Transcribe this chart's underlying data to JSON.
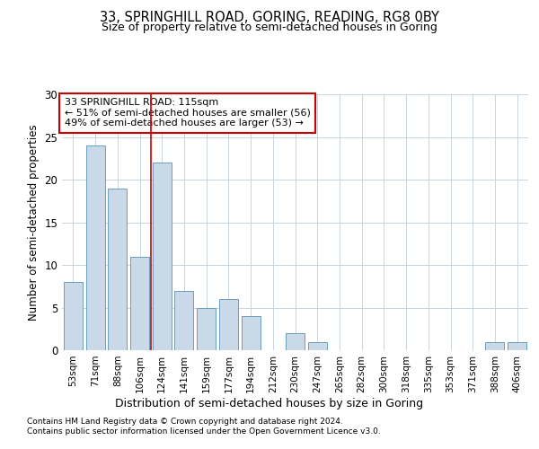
{
  "title1": "33, SPRINGHILL ROAD, GORING, READING, RG8 0BY",
  "title2": "Size of property relative to semi-detached houses in Goring",
  "xlabel": "Distribution of semi-detached houses by size in Goring",
  "ylabel": "Number of semi-detached properties",
  "categories": [
    "53sqm",
    "71sqm",
    "88sqm",
    "106sqm",
    "124sqm",
    "141sqm",
    "159sqm",
    "177sqm",
    "194sqm",
    "212sqm",
    "230sqm",
    "247sqm",
    "265sqm",
    "282sqm",
    "300sqm",
    "318sqm",
    "335sqm",
    "353sqm",
    "371sqm",
    "388sqm",
    "406sqm"
  ],
  "values": [
    8,
    24,
    19,
    11,
    22,
    7,
    5,
    6,
    4,
    0,
    2,
    1,
    0,
    0,
    0,
    0,
    0,
    0,
    0,
    1,
    1
  ],
  "bar_color": "#c9d9e8",
  "bar_edge_color": "#6a9fc0",
  "annotation_title": "33 SPRINGHILL ROAD: 115sqm",
  "annotation_line1": "← 51% of semi-detached houses are smaller (56)",
  "annotation_line2": "49% of semi-detached houses are larger (53) →",
  "annotation_box_color": "#ffffff",
  "annotation_box_edge": "#cc0000",
  "vline_color": "#cc0000",
  "vline_x_index": 3.5,
  "ylim": [
    0,
    30
  ],
  "yticks": [
    0,
    5,
    10,
    15,
    20,
    25,
    30
  ],
  "footnote1": "Contains HM Land Registry data © Crown copyright and database right 2024.",
  "footnote2": "Contains public sector information licensed under the Open Government Licence v3.0.",
  "bg_color": "#ffffff",
  "grid_color": "#c8d4dc"
}
